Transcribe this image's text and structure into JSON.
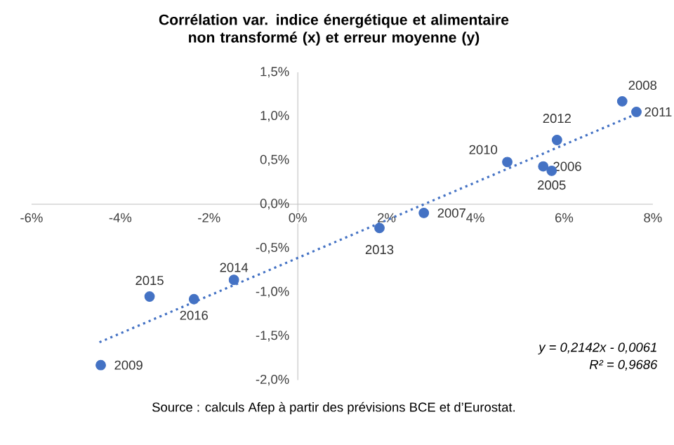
{
  "chart_data": {
    "type": "scatter",
    "title": "Corrélation var. indice énergétique et alimentaire non transformé (x) et erreur moyenne (y)",
    "xlim": [
      -6,
      8
    ],
    "ylim": [
      -2,
      1.5
    ],
    "xticks": [
      {
        "value": -6,
        "label": "-6%"
      },
      {
        "value": -4,
        "label": "-4%"
      },
      {
        "value": -2,
        "label": "-2%"
      },
      {
        "value": 0,
        "label": "0%"
      },
      {
        "value": 2,
        "label": "2%"
      },
      {
        "value": 4,
        "label": "4%"
      },
      {
        "value": 6,
        "label": "6%"
      },
      {
        "value": 8,
        "label": "8%"
      }
    ],
    "yticks": [
      {
        "value": -2,
        "label": "-2,0%"
      },
      {
        "value": -1.5,
        "label": "-1,5%"
      },
      {
        "value": -1,
        "label": "-1,0%"
      },
      {
        "value": -0.5,
        "label": "-0,5%"
      },
      {
        "value": 0,
        "label": "0,0%"
      },
      {
        "value": 0.5,
        "label": "0,5%"
      },
      {
        "value": 1,
        "label": "1,0%"
      },
      {
        "value": 1.5,
        "label": "1,5%"
      }
    ],
    "series": [
      {
        "color": "#4472c4",
        "marker": "circle",
        "x": [
          5.72,
          5.53,
          2.84,
          7.31,
          -4.44,
          4.72,
          7.63,
          5.84,
          1.84,
          -1.44,
          -3.34,
          -2.34
        ],
        "values": [
          0.38,
          0.43,
          -0.1,
          1.17,
          -1.83,
          0.48,
          1.05,
          0.73,
          -0.27,
          -0.86,
          -1.05,
          -1.08
        ]
      },
      {
        "type": "line",
        "color": "#4472c4",
        "marker": "none",
        "line_style": "dotted",
        "x": [
          -4.47,
          7.6
        ],
        "values": [
          -1.57,
          1.02
        ]
      }
    ],
    "annotations": [
      {
        "text": "2005",
        "x": 5.72,
        "y": 0.38
      },
      {
        "text": "2006",
        "x": 5.53,
        "y": 0.43
      },
      {
        "text": "2007",
        "x": 2.84,
        "y": -0.1
      },
      {
        "text": "2008",
        "x": 7.31,
        "y": 1.17
      },
      {
        "text": "2009",
        "x": -4.44,
        "y": -1.83
      },
      {
        "text": "2010",
        "x": 4.72,
        "y": 0.48
      },
      {
        "text": "2011",
        "x": 7.63,
        "y": 1.05
      },
      {
        "text": "2012",
        "x": 5.84,
        "y": 0.73
      },
      {
        "text": "2013",
        "x": 1.84,
        "y": -0.27
      },
      {
        "text": "2014",
        "x": -1.44,
        "y": -0.86
      },
      {
        "text": "2015",
        "x": -3.34,
        "y": -1.05
      },
      {
        "text": "2016",
        "x": -2.34,
        "y": -1.08
      },
      "y = 0,2142x - 0,0061",
      "R² = 0,9686",
      "Source : calculs Afep à partir des prévisions BCE et d’Eurostat."
    ]
  }
}
